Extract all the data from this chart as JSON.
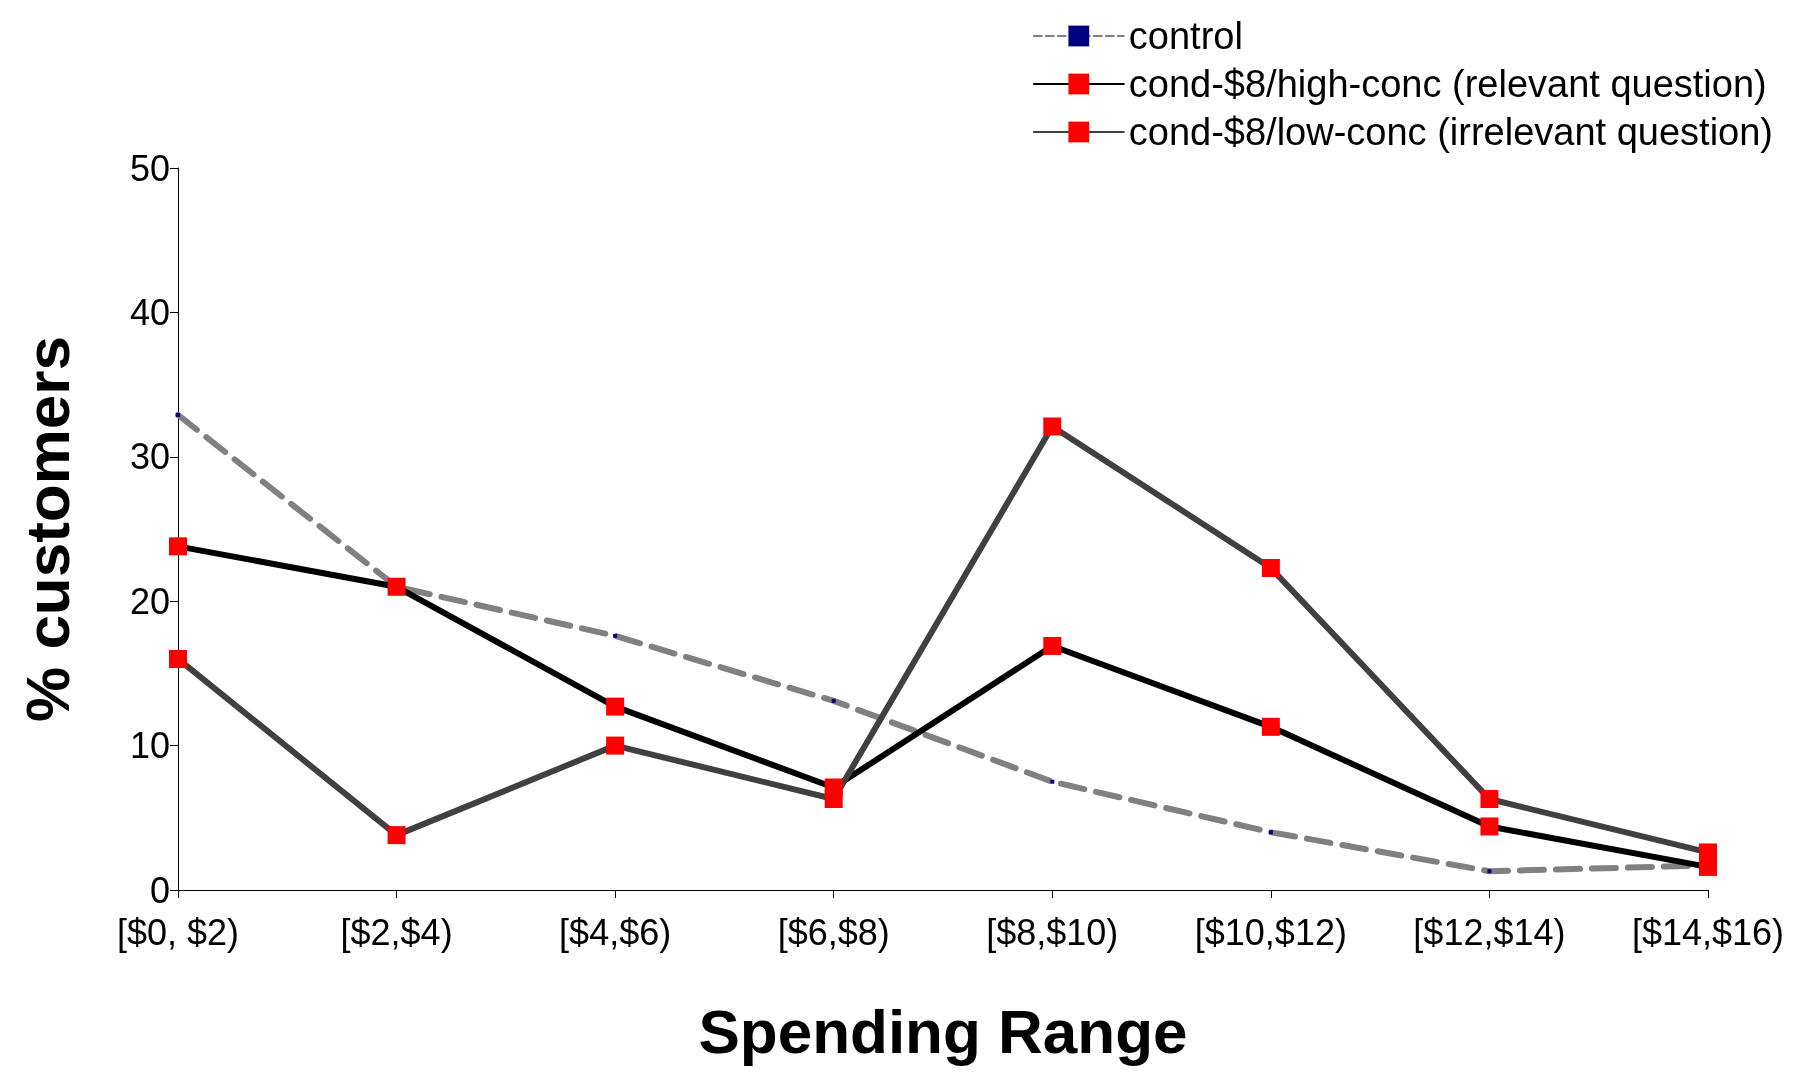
{
  "chart_data": {
    "type": "line",
    "xlabel": "Spending Range",
    "ylabel": "% customers",
    "categories": [
      "[$0, $2)",
      "[$2,$4)",
      "[$4,$6)",
      "[$6,$8)",
      "[$8,$10)",
      "[$10,$12)",
      "[$12,$14)",
      "[$14,$16)"
    ],
    "ylim": [
      0,
      50
    ],
    "yticks": [
      0,
      10,
      20,
      30,
      40,
      50
    ],
    "grid": false,
    "legend": "top right",
    "series": [
      {
        "name": "control",
        "color": "#808080",
        "line_style": "dashed",
        "marker": "square",
        "colors": [
          "#000080",
          "#000080",
          "#000080",
          "#000080",
          "#000080",
          "#000080",
          "#000080",
          "#000080"
        ],
        "values": [
          32.9,
          21,
          17.6,
          13.1,
          7.5,
          4.0,
          1.3,
          1.7
        ]
      },
      {
        "name": "cond-$8/high-conc (relevant question)",
        "color": "#000000",
        "line_style": "solid",
        "marker": "square",
        "colors": [
          "#ff0000",
          "#ff0000",
          "#ff0000",
          "#ff0000",
          "#ff0000",
          "#ff0000",
          "#ff0000",
          "#ff0000"
        ],
        "values": [
          23.8,
          21,
          12.7,
          7.1,
          16.9,
          11.3,
          4.4,
          1.6
        ]
      },
      {
        "name": "cond-$8/low-conc (irrelevant question)",
        "color": "#404040",
        "line_style": "solid",
        "marker": "square",
        "colors": [
          "#ff0000",
          "#ff0000",
          "#ff0000",
          "#ff0000",
          "#ff0000",
          "#ff0000",
          "#ff0000",
          "#ff0000"
        ],
        "values": [
          16,
          3.8,
          10,
          6.3,
          32.1,
          22.3,
          6.3,
          2.6
        ]
      }
    ]
  }
}
